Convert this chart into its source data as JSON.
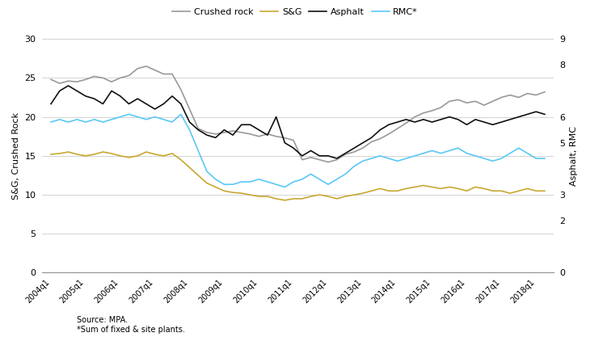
{
  "left_ylabel": "S&G, Crushed Rock",
  "right_ylabel": "Asphalt, RMC",
  "left_ylim": [
    0,
    30
  ],
  "right_ylim": [
    0,
    9
  ],
  "left_yticks": [
    0,
    5,
    10,
    15,
    20,
    25,
    30
  ],
  "right_yticks": [
    0,
    2,
    3,
    5,
    6,
    8,
    9
  ],
  "source_text": "Source: MPA.\n*Sum of fixed & site plants.",
  "legend_entries": [
    "Crushed rock",
    "S&G",
    "Asphalt",
    "RMC*"
  ],
  "line_colors": [
    "#999999",
    "#c8a832",
    "#111111",
    "#5bc8f5"
  ],
  "x_labels": [
    "2004q1",
    "2005q1",
    "2006q1",
    "2007q1",
    "2008q1",
    "2009q1",
    "2010q1",
    "2011q1",
    "2012q1",
    "2013q1",
    "2014q1",
    "2015q1",
    "2016q1",
    "2017q1",
    "2018q1"
  ],
  "crushed_rock": [
    24.8,
    24.3,
    24.6,
    24.5,
    24.8,
    25.2,
    25.0,
    24.5,
    25.0,
    25.3,
    26.2,
    26.5,
    26.0,
    25.5,
    25.5,
    23.5,
    21.0,
    18.5,
    18.0,
    17.8,
    18.0,
    18.2,
    18.0,
    17.8,
    17.5,
    17.8,
    17.5,
    17.3,
    17.0,
    14.5,
    14.8,
    14.5,
    14.2,
    14.5,
    15.2,
    15.5,
    16.0,
    16.8,
    17.2,
    17.8,
    18.5,
    19.2,
    20.0,
    20.5,
    20.8,
    21.2,
    22.0,
    22.2,
    21.8,
    22.0,
    21.5,
    22.0,
    22.5,
    22.8,
    22.5,
    23.0,
    22.8,
    23.2
  ],
  "sg": [
    15.2,
    15.3,
    15.5,
    15.2,
    15.0,
    15.2,
    15.5,
    15.3,
    15.0,
    14.8,
    15.0,
    15.5,
    15.2,
    15.0,
    15.3,
    14.5,
    13.5,
    12.5,
    11.5,
    11.0,
    10.5,
    10.3,
    10.2,
    10.0,
    9.8,
    9.8,
    9.5,
    9.3,
    9.5,
    9.5,
    9.8,
    10.0,
    9.8,
    9.5,
    9.8,
    10.0,
    10.2,
    10.5,
    10.8,
    10.5,
    10.5,
    10.8,
    11.0,
    11.2,
    11.0,
    10.8,
    11.0,
    10.8,
    10.5,
    11.0,
    10.8,
    10.5,
    10.5,
    10.2,
    10.5,
    10.8,
    10.5,
    10.5
  ],
  "asphalt": [
    6.5,
    7.0,
    7.2,
    7.0,
    6.8,
    6.7,
    6.5,
    7.0,
    6.8,
    6.5,
    6.7,
    6.5,
    6.3,
    6.5,
    6.8,
    6.5,
    5.8,
    5.5,
    5.3,
    5.2,
    5.5,
    5.3,
    5.7,
    5.7,
    5.5,
    5.3,
    6.0,
    5.0,
    4.8,
    4.5,
    4.7,
    4.5,
    4.5,
    4.4,
    4.6,
    4.8,
    5.0,
    5.2,
    5.5,
    5.7,
    5.8,
    5.9,
    5.8,
    5.9,
    5.8,
    5.9,
    6.0,
    5.9,
    5.7,
    5.9,
    5.8,
    5.7,
    5.8,
    5.9,
    6.0,
    6.1,
    6.2,
    6.1
  ],
  "rmc": [
    5.8,
    5.9,
    5.8,
    5.9,
    5.8,
    5.9,
    5.8,
    5.9,
    6.0,
    6.1,
    6.0,
    5.9,
    6.0,
    5.9,
    5.8,
    6.1,
    5.5,
    4.7,
    3.9,
    3.6,
    3.4,
    3.4,
    3.5,
    3.5,
    3.6,
    3.5,
    3.4,
    3.3,
    3.5,
    3.6,
    3.8,
    3.6,
    3.4,
    3.6,
    3.8,
    4.1,
    4.3,
    4.4,
    4.5,
    4.4,
    4.3,
    4.4,
    4.5,
    4.6,
    4.7,
    4.6,
    4.7,
    4.8,
    4.6,
    4.5,
    4.4,
    4.3,
    4.4,
    4.6,
    4.8,
    4.6,
    4.4,
    4.4
  ]
}
